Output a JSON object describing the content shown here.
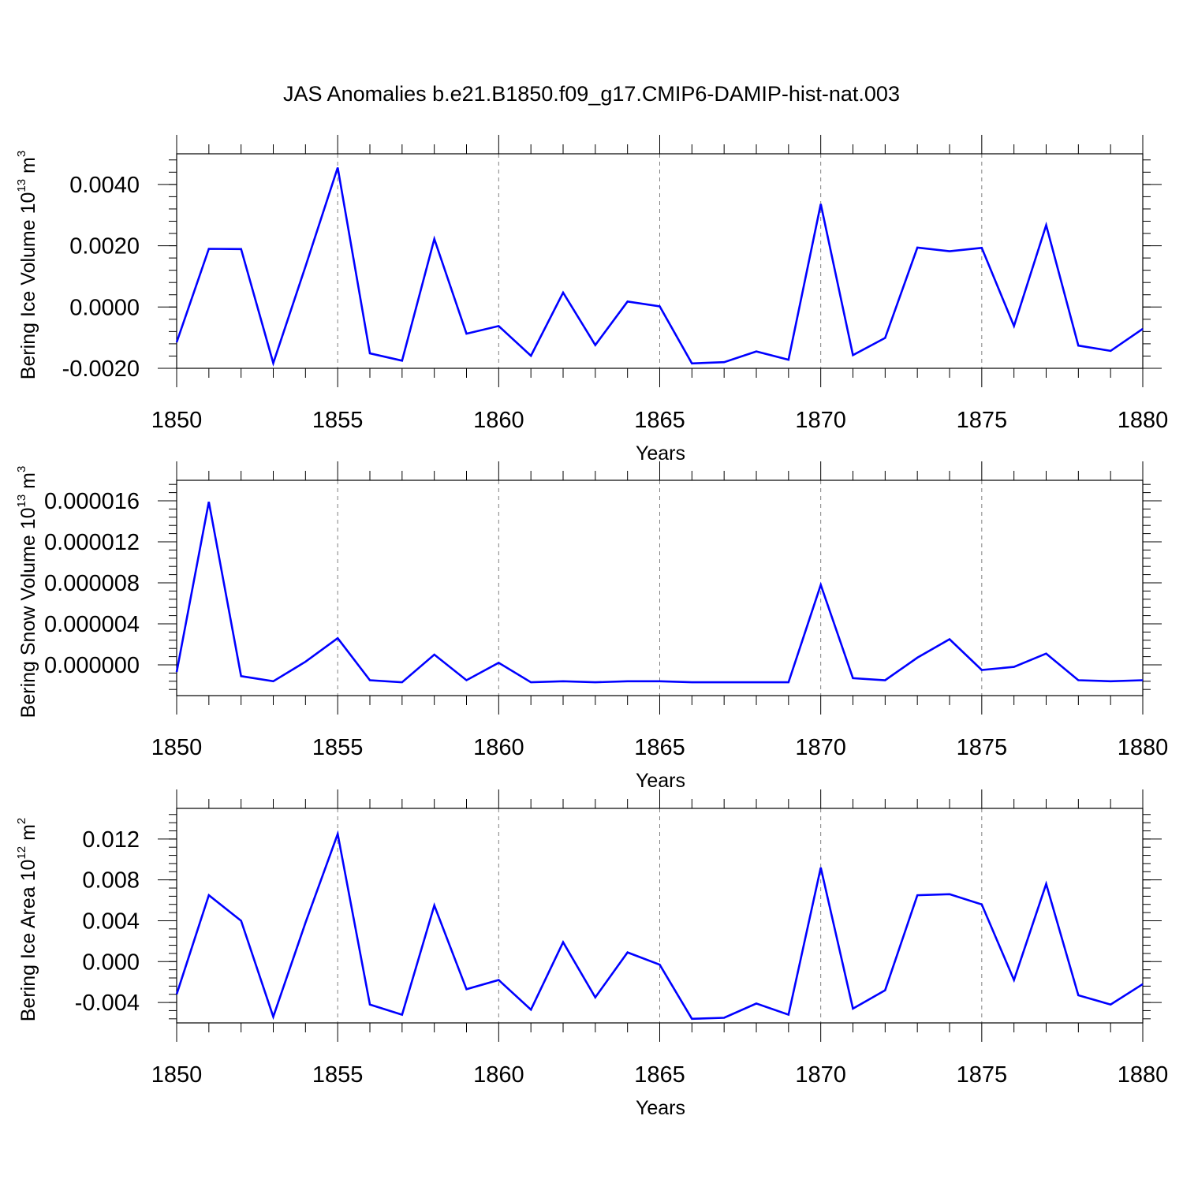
{
  "title": "JAS Anomalies b.e21.B1850.f09_g17.CMIP6-DAMIP-hist-nat.003",
  "colors": {
    "line": "#0000ff",
    "axis": "#000000",
    "grid": "#808080"
  },
  "chart_data": [
    {
      "type": "line",
      "panel": "ice-volume",
      "ylabel": "Bering Ice Volume 10",
      "ylabel_exp": "13",
      "ylabel_unit": " m",
      "ylabel_unit_exp": "3",
      "xlabel": "Years",
      "xlim": [
        1850,
        1880
      ],
      "ylim": [
        -0.002,
        0.005
      ],
      "xticks": [
        1850,
        1855,
        1860,
        1865,
        1870,
        1875,
        1880
      ],
      "xtick_labels": [
        "1850",
        "1855",
        "1860",
        "1865",
        "1870",
        "1875",
        "1880"
      ],
      "yticks": [
        -0.002,
        0.0,
        0.002,
        0.004
      ],
      "ytick_labels": [
        "-0.0020",
        "0.0000",
        "0.0020",
        "0.0040"
      ],
      "yminor_step": 0.0004,
      "grid_x": [
        1855,
        1860,
        1865,
        1870,
        1875
      ],
      "x": [
        1850,
        1851,
        1852,
        1853,
        1854,
        1855,
        1856,
        1857,
        1858,
        1859,
        1860,
        1861,
        1862,
        1863,
        1864,
        1865,
        1866,
        1867,
        1868,
        1869,
        1870,
        1871,
        1872,
        1873,
        1874,
        1875,
        1876,
        1877,
        1878,
        1879,
        1880
      ],
      "values": [
        -0.00115,
        0.0019,
        0.00189,
        -0.00183,
        0.00132,
        0.00455,
        -0.00151,
        -0.00175,
        0.00222,
        -0.00087,
        -0.00062,
        -0.00159,
        0.00047,
        -0.00124,
        0.00018,
        2e-05,
        -0.00184,
        -0.0018,
        -0.00145,
        -0.00172,
        0.00336,
        -0.00157,
        -0.00101,
        0.00194,
        0.00182,
        0.00193,
        -0.00062,
        0.00267,
        -0.00126,
        -0.00143,
        -0.00071
      ]
    },
    {
      "type": "line",
      "panel": "snow-volume",
      "ylabel": "Bering Snow Volume 10",
      "ylabel_exp": "13",
      "ylabel_unit": " m",
      "ylabel_unit_exp": "3",
      "xlabel": "Years",
      "xlim": [
        1850,
        1880
      ],
      "ylim": [
        -3e-06,
        1.8e-05
      ],
      "xticks": [
        1850,
        1855,
        1860,
        1865,
        1870,
        1875,
        1880
      ],
      "xtick_labels": [
        "1850",
        "1855",
        "1860",
        "1865",
        "1870",
        "1875",
        "1880"
      ],
      "yticks": [
        0.0,
        4e-06,
        8e-06,
        1.2e-05,
        1.6e-05
      ],
      "ytick_labels": [
        "0.000000",
        "0.000004",
        "0.000008",
        "0.000012",
        "0.000016"
      ],
      "yminor_step": 8e-07,
      "grid_x": [
        1855,
        1860,
        1865,
        1870,
        1875
      ],
      "x": [
        1850,
        1851,
        1852,
        1853,
        1854,
        1855,
        1856,
        1857,
        1858,
        1859,
        1860,
        1861,
        1862,
        1863,
        1864,
        1865,
        1866,
        1867,
        1868,
        1869,
        1870,
        1871,
        1872,
        1873,
        1874,
        1875,
        1876,
        1877,
        1878,
        1879,
        1880
      ],
      "values": [
        -7e-07,
        1.59e-05,
        -1.1e-06,
        -1.6e-06,
        3e-07,
        2.6e-06,
        -1.5e-06,
        -1.7e-06,
        1e-06,
        -1.5e-06,
        2e-07,
        -1.7e-06,
        -1.6e-06,
        -1.7e-06,
        -1.6e-06,
        -1.6e-06,
        -1.7e-06,
        -1.7e-06,
        -1.7e-06,
        -1.7e-06,
        7.8e-06,
        -1.3e-06,
        -1.5e-06,
        7e-07,
        2.5e-06,
        -5e-07,
        -2e-07,
        1.1e-06,
        -1.5e-06,
        -1.6e-06,
        -1.5e-06
      ]
    },
    {
      "type": "line",
      "panel": "ice-area",
      "ylabel": "Bering Ice Area 10",
      "ylabel_exp": "12",
      "ylabel_unit": " m",
      "ylabel_unit_exp": "2",
      "xlabel": "Years",
      "xlim": [
        1850,
        1880
      ],
      "ylim": [
        -0.006,
        0.015
      ],
      "xticks": [
        1850,
        1855,
        1860,
        1865,
        1870,
        1875,
        1880
      ],
      "xtick_labels": [
        "1850",
        "1855",
        "1860",
        "1865",
        "1870",
        "1875",
        "1880"
      ],
      "yticks": [
        -0.004,
        0.0,
        0.004,
        0.008,
        0.012
      ],
      "ytick_labels": [
        "-0.004",
        "0.000",
        "0.004",
        "0.008",
        "0.012"
      ],
      "yminor_step": 0.0008,
      "grid_x": [
        1855,
        1860,
        1865,
        1870,
        1875
      ],
      "x": [
        1850,
        1851,
        1852,
        1853,
        1854,
        1855,
        1856,
        1857,
        1858,
        1859,
        1860,
        1861,
        1862,
        1863,
        1864,
        1865,
        1866,
        1867,
        1868,
        1869,
        1870,
        1871,
        1872,
        1873,
        1874,
        1875,
        1876,
        1877,
        1878,
        1879,
        1880
      ],
      "values": [
        -0.0032,
        0.0065,
        0.004,
        -0.0054,
        0.0038,
        0.0125,
        -0.0042,
        -0.0052,
        0.0055,
        -0.0027,
        -0.0018,
        -0.0047,
        0.0019,
        -0.0035,
        0.0009,
        -0.0003,
        -0.0056,
        -0.0055,
        -0.0041,
        -0.0052,
        0.0092,
        -0.0046,
        -0.0028,
        0.0065,
        0.0066,
        0.0056,
        -0.0018,
        0.0076,
        -0.0033,
        -0.0042,
        -0.0022
      ]
    }
  ]
}
